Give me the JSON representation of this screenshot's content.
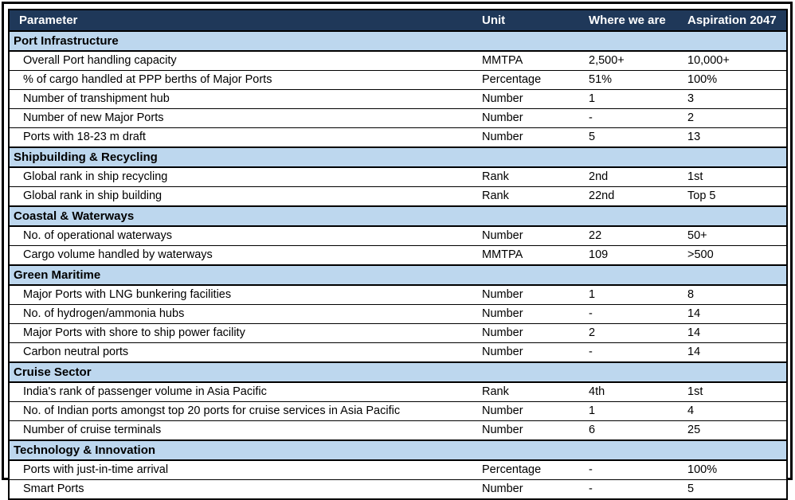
{
  "chart_data": {
    "type": "table",
    "columns": [
      "Parameter",
      "Unit",
      "Where we are",
      "Aspiration 2047"
    ],
    "sections": [
      {
        "title": "Port Infrastructure",
        "rows": [
          {
            "parameter": "Overall Port handling capacity",
            "unit": "MMTPA",
            "where_we_are": "2,500+",
            "aspiration_2047": "10,000+"
          },
          {
            "parameter": "% of cargo handled at PPP berths of Major Ports",
            "unit": "Percentage",
            "where_we_are": "51%",
            "aspiration_2047": "100%"
          },
          {
            "parameter": "Number of transhipment hub",
            "unit": "Number",
            "where_we_are": "1",
            "aspiration_2047": "3"
          },
          {
            "parameter": "Number of new Major Ports",
            "unit": "Number",
            "where_we_are": "-",
            "aspiration_2047": "2"
          },
          {
            "parameter": "Ports with 18-23 m draft",
            "unit": "Number",
            "where_we_are": "5",
            "aspiration_2047": "13"
          }
        ]
      },
      {
        "title": "Shipbuilding & Recycling",
        "rows": [
          {
            "parameter": "Global rank in ship recycling",
            "unit": "Rank",
            "where_we_are": "2nd",
            "aspiration_2047": "1st"
          },
          {
            "parameter": "Global rank in ship building",
            "unit": "Rank",
            "where_we_are": "22nd",
            "aspiration_2047": "Top 5"
          }
        ]
      },
      {
        "title": "Coastal & Waterways",
        "rows": [
          {
            "parameter": "No. of operational waterways",
            "unit": "Number",
            "where_we_are": "22",
            "aspiration_2047": "50+"
          },
          {
            "parameter": "Cargo volume handled by waterways",
            "unit": "MMTPA",
            "where_we_are": "109",
            "aspiration_2047": ">500"
          }
        ]
      },
      {
        "title": "Green Maritime",
        "rows": [
          {
            "parameter": "Major Ports with LNG bunkering facilities",
            "unit": "Number",
            "where_we_are": "1",
            "aspiration_2047": "8"
          },
          {
            "parameter": "No. of hydrogen/ammonia hubs",
            "unit": "Number",
            "where_we_are": "-",
            "aspiration_2047": "14"
          },
          {
            "parameter": "Major Ports with shore to ship power facility",
            "unit": "Number",
            "where_we_are": "2",
            "aspiration_2047": "14"
          },
          {
            "parameter": "Carbon neutral ports",
            "unit": "Number",
            "where_we_are": "-",
            "aspiration_2047": "14"
          }
        ]
      },
      {
        "title": "Cruise Sector",
        "rows": [
          {
            "parameter": "India's rank of passenger volume in Asia Pacific",
            "unit": "Rank",
            "where_we_are": "4th",
            "aspiration_2047": "1st"
          },
          {
            "parameter": "No. of Indian ports amongst top 20 ports for cruise services in Asia Pacific",
            "unit": "Number",
            "where_we_are": "1",
            "aspiration_2047": "4"
          },
          {
            "parameter": "Number of cruise terminals",
            "unit": "Number",
            "where_we_are": "6",
            "aspiration_2047": "25"
          }
        ]
      },
      {
        "title": "Technology & Innovation",
        "rows": [
          {
            "parameter": "Ports with just-in-time arrival",
            "unit": "Percentage",
            "where_we_are": "-",
            "aspiration_2047": "100%"
          },
          {
            "parameter": "Smart Ports",
            "unit": "Number",
            "where_we_are": "-",
            "aspiration_2047": "5"
          }
        ]
      }
    ],
    "title": "",
    "layout": {
      "grid": "horizontal-lines-only",
      "header_position": "top"
    }
  },
  "colors": {
    "header_bg": "#1F3859",
    "header_text": "#FFFFFF",
    "section_bg": "#BDD7EE",
    "section_text": "#000000",
    "row_bg": "#FFFFFF",
    "row_text": "#000000",
    "border": "#000000"
  }
}
